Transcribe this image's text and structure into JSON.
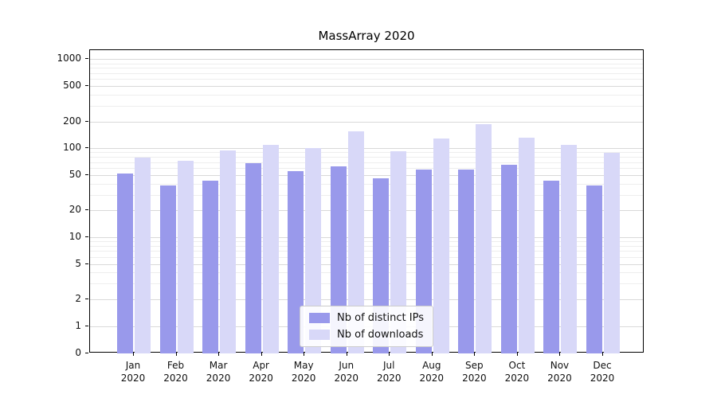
{
  "chart_data": {
    "type": "bar",
    "title": "MassArray 2020",
    "categories": [
      "Jan",
      "Feb",
      "Mar",
      "Apr",
      "May",
      "Jun",
      "Jul",
      "Aug",
      "Sep",
      "Oct",
      "Nov",
      "Dec"
    ],
    "year_label": "2020",
    "series": [
      {
        "name": "Nb of distinct IPs",
        "color": "#9999eb",
        "values": [
          52,
          38,
          43,
          68,
          55,
          63,
          46,
          58,
          57,
          65,
          43,
          38
        ]
      },
      {
        "name": "Nb of downloads",
        "color": "#d8d8f8",
        "values": [
          78,
          72,
          95,
          108,
          100,
          155,
          92,
          128,
          185,
          132,
          108,
          88
        ]
      }
    ],
    "yscale": "symlog",
    "yticks": [
      1000,
      500,
      200,
      100,
      50,
      20,
      10,
      5,
      2,
      1,
      0
    ],
    "ylim": [
      0,
      1300
    ],
    "grid": true,
    "legend_position": "lower center"
  }
}
